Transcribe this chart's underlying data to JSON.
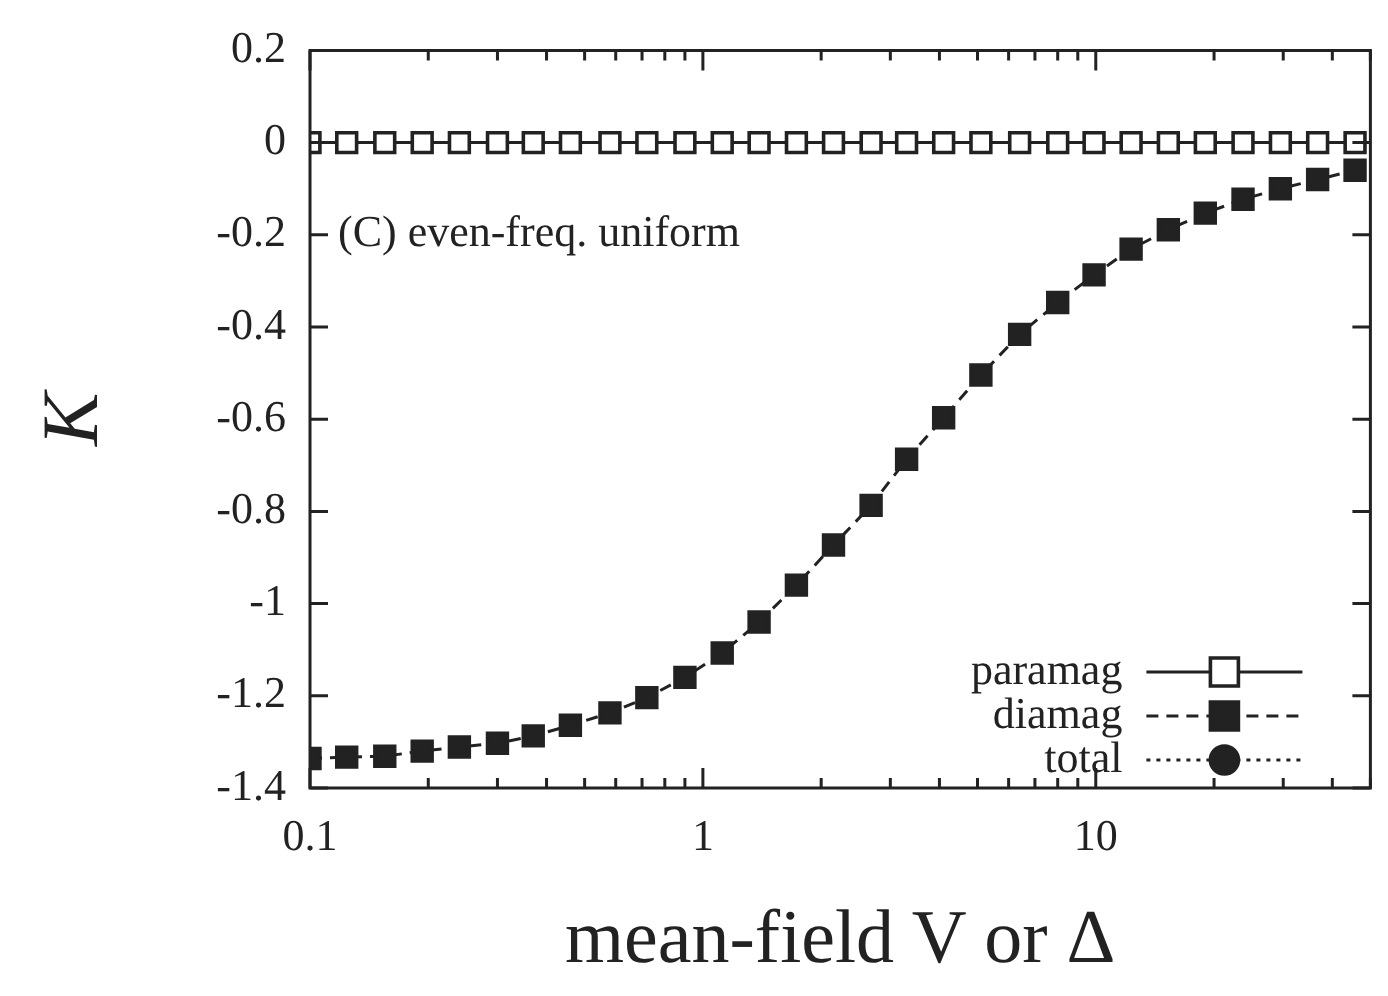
{
  "chart_data": {
    "type": "line",
    "xlabel": "mean-field V or Δ",
    "ylabel": "K",
    "log": "x",
    "x": [
      0.1,
      0.124,
      0.155,
      0.193,
      0.24,
      0.3,
      0.37,
      0.46,
      0.58,
      0.72,
      0.9,
      1.12,
      1.39,
      1.73,
      2.15,
      2.68,
      3.3,
      4.1,
      5.1,
      6.4,
      8,
      9.9,
      12.3,
      15.3,
      19,
      23.7,
      29.5,
      36.7,
      45.7
    ],
    "xlim": [
      0.1,
      50
    ],
    "xticks": [
      0.1,
      1,
      10
    ],
    "ylim": [
      -1.4,
      0.2
    ],
    "yticks": [
      -1.4,
      -1.2,
      -1,
      -0.8,
      -0.6,
      -0.4,
      -0.2,
      0,
      0.2
    ],
    "grid": false,
    "legend": "bottom right",
    "annotations": [
      "(C) even-freq. uniform"
    ],
    "series": [
      {
        "name": "paramag",
        "color": "#222222",
        "marker": "square",
        "line_style": "solid",
        "values": [
          0,
          0,
          0,
          0,
          0,
          0,
          0,
          0,
          0,
          0,
          0,
          0,
          0,
          0,
          0,
          0,
          0,
          0,
          0,
          0,
          0,
          0,
          0,
          0,
          0,
          0,
          0,
          0,
          0
        ]
      },
      {
        "name": "diamag",
        "color": "#222222",
        "marker": "square",
        "line_style": "dashed",
        "values": [
          -1.336,
          -1.333,
          -1.331,
          -1.32,
          -1.311,
          -1.303,
          -1.287,
          -1.264,
          -1.237,
          -1.204,
          -1.16,
          -1.107,
          -1.04,
          -0.96,
          -0.873,
          -0.787,
          -0.687,
          -0.597,
          -0.504,
          -0.416,
          -0.347,
          -0.287,
          -0.231,
          -0.189,
          -0.153,
          -0.123,
          -0.1,
          -0.08,
          -0.06
        ]
      },
      {
        "name": "total",
        "color": "#222222",
        "marker": "circle",
        "line_style": "dotted",
        "values": [
          null,
          null,
          null,
          null,
          null,
          null,
          null,
          null,
          null,
          null,
          null,
          null,
          null,
          null,
          null,
          null,
          null,
          null,
          null,
          null,
          null,
          null,
          null,
          null,
          null,
          null,
          null,
          null,
          null
        ]
      }
    ]
  }
}
